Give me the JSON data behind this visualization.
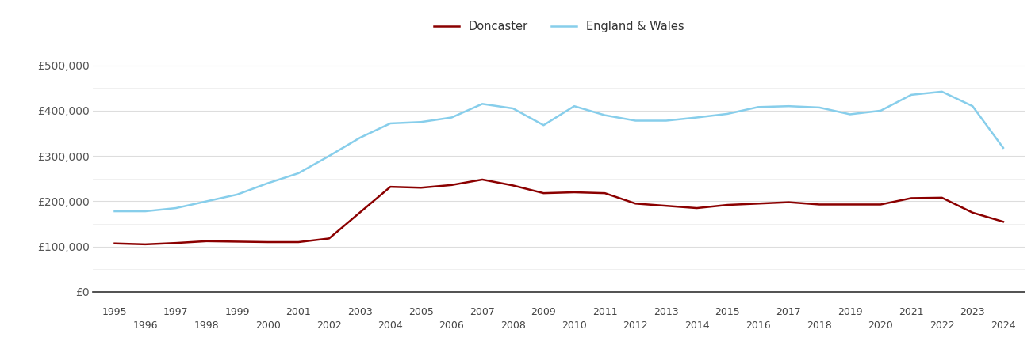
{
  "doncaster": {
    "years": [
      1995,
      1996,
      1997,
      1998,
      1999,
      2000,
      2001,
      2002,
      2003,
      2004,
      2005,
      2006,
      2007,
      2008,
      2009,
      2010,
      2011,
      2012,
      2013,
      2014,
      2015,
      2016,
      2017,
      2018,
      2019,
      2020,
      2021,
      2022,
      2023,
      2024
    ],
    "values": [
      107000,
      105000,
      108000,
      112000,
      111000,
      110000,
      110000,
      118000,
      175000,
      232000,
      230000,
      236000,
      248000,
      235000,
      218000,
      220000,
      218000,
      195000,
      190000,
      185000,
      192000,
      195000,
      198000,
      193000,
      193000,
      193000,
      207000,
      208000,
      175000,
      155000
    ]
  },
  "england_wales": {
    "years": [
      1995,
      1996,
      1997,
      1998,
      1999,
      2000,
      2001,
      2002,
      2003,
      2004,
      2005,
      2006,
      2007,
      2008,
      2009,
      2010,
      2011,
      2012,
      2013,
      2014,
      2015,
      2016,
      2017,
      2018,
      2019,
      2020,
      2021,
      2022,
      2023,
      2024
    ],
    "values": [
      178000,
      178000,
      185000,
      200000,
      215000,
      240000,
      262000,
      300000,
      340000,
      372000,
      375000,
      385000,
      415000,
      405000,
      368000,
      410000,
      390000,
      378000,
      378000,
      385000,
      393000,
      408000,
      410000,
      407000,
      392000,
      400000,
      435000,
      442000,
      410000,
      318000
    ]
  },
  "doncaster_color": "#8b0000",
  "england_wales_color": "#87ceeb",
  "ylim": [
    0,
    550000
  ],
  "yticks": [
    0,
    100000,
    200000,
    300000,
    400000,
    500000
  ],
  "ytick_labels": [
    "£0",
    "£100,000",
    "£200,000",
    "£300,000",
    "£400,000",
    "£500,000"
  ],
  "minor_yticks": [
    50000,
    150000,
    250000,
    350000,
    450000
  ],
  "xlabel_odd": [
    1995,
    1997,
    1999,
    2001,
    2003,
    2005,
    2007,
    2009,
    2011,
    2013,
    2015,
    2017,
    2019,
    2021,
    2023
  ],
  "xlabel_even": [
    1996,
    1998,
    2000,
    2002,
    2004,
    2006,
    2008,
    2010,
    2012,
    2014,
    2016,
    2018,
    2020,
    2022,
    2024
  ],
  "line_width": 1.8,
  "legend_doncaster": "Doncaster",
  "legend_england_wales": "England & Wales",
  "background_color": "#ffffff",
  "grid_color": "#dddddd",
  "minor_grid_color": "#eeeeee"
}
